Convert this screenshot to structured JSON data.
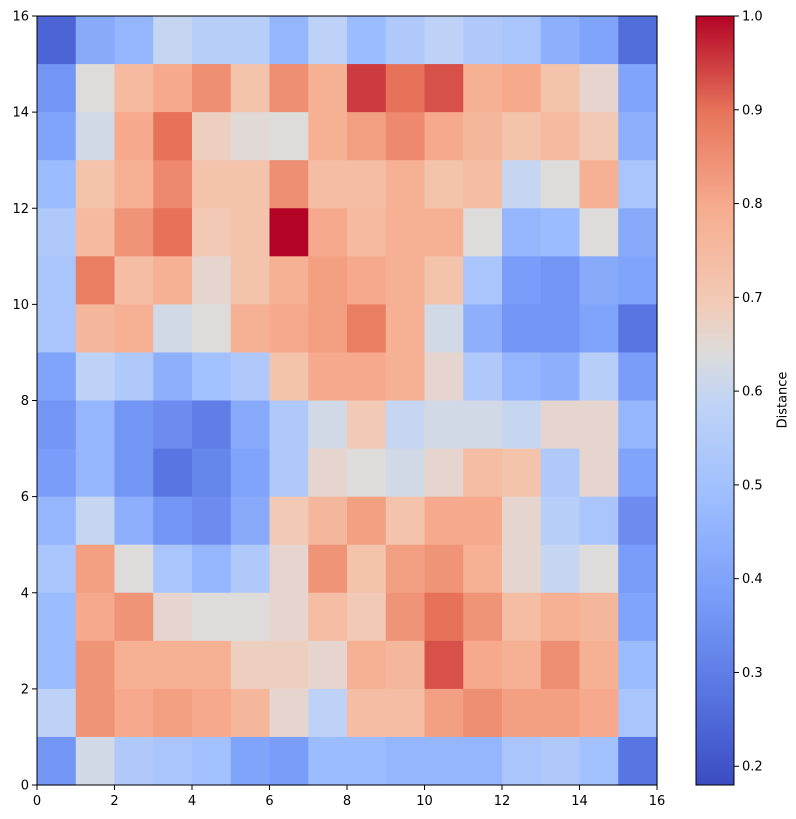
{
  "chart_data": {
    "type": "heatmap",
    "title": "",
    "xlabel": "",
    "ylabel": "",
    "xlim": [
      0,
      16
    ],
    "ylim": [
      0,
      16
    ],
    "x_ticks": [
      0,
      2,
      4,
      6,
      8,
      10,
      12,
      14,
      16
    ],
    "y_ticks": [
      0,
      2,
      4,
      6,
      8,
      10,
      12,
      14,
      16
    ],
    "colormap": "coolwarm",
    "colorbar": {
      "label": "Distance",
      "vmin": 0.18,
      "vmax": 1.0,
      "ticks": [
        0.2,
        0.3,
        0.4,
        0.5,
        0.6,
        0.7,
        0.8,
        0.9,
        1.0
      ],
      "tick_labels": [
        "0.2",
        "0.3",
        "0.4",
        "0.5",
        "0.6",
        "0.7",
        "0.8",
        "0.9",
        "1.0"
      ]
    },
    "grid": false,
    "rows_top_to_bottom": [
      [
        0.24,
        0.42,
        0.46,
        0.6,
        0.56,
        0.56,
        0.46,
        0.58,
        0.48,
        0.54,
        0.58,
        0.54,
        0.52,
        0.44,
        0.4,
        0.26
      ],
      [
        0.36,
        0.64,
        0.75,
        0.8,
        0.85,
        0.72,
        0.85,
        0.78,
        0.95,
        0.9,
        0.93,
        0.78,
        0.8,
        0.72,
        0.66,
        0.4
      ],
      [
        0.4,
        0.62,
        0.8,
        0.9,
        0.68,
        0.65,
        0.64,
        0.78,
        0.82,
        0.86,
        0.8,
        0.76,
        0.72,
        0.75,
        0.7,
        0.44
      ],
      [
        0.48,
        0.72,
        0.78,
        0.86,
        0.72,
        0.72,
        0.85,
        0.74,
        0.74,
        0.78,
        0.72,
        0.74,
        0.6,
        0.64,
        0.78,
        0.52
      ],
      [
        0.54,
        0.75,
        0.84,
        0.9,
        0.7,
        0.72,
        1.0,
        0.8,
        0.75,
        0.78,
        0.78,
        0.64,
        0.46,
        0.48,
        0.64,
        0.42
      ],
      [
        0.52,
        0.88,
        0.74,
        0.78,
        0.66,
        0.72,
        0.78,
        0.82,
        0.8,
        0.78,
        0.72,
        0.52,
        0.38,
        0.36,
        0.42,
        0.4
      ],
      [
        0.52,
        0.76,
        0.78,
        0.62,
        0.64,
        0.78,
        0.8,
        0.82,
        0.88,
        0.78,
        0.62,
        0.44,
        0.36,
        0.36,
        0.4,
        0.28
      ],
      [
        0.4,
        0.58,
        0.54,
        0.44,
        0.5,
        0.54,
        0.72,
        0.8,
        0.8,
        0.78,
        0.66,
        0.54,
        0.46,
        0.44,
        0.56,
        0.38
      ],
      [
        0.36,
        0.46,
        0.36,
        0.34,
        0.3,
        0.42,
        0.54,
        0.62,
        0.7,
        0.6,
        0.62,
        0.62,
        0.6,
        0.66,
        0.66,
        0.46
      ],
      [
        0.38,
        0.46,
        0.36,
        0.28,
        0.32,
        0.4,
        0.54,
        0.66,
        0.64,
        0.62,
        0.66,
        0.74,
        0.72,
        0.54,
        0.66,
        0.4
      ],
      [
        0.46,
        0.6,
        0.44,
        0.36,
        0.34,
        0.42,
        0.7,
        0.76,
        0.82,
        0.72,
        0.8,
        0.8,
        0.66,
        0.56,
        0.52,
        0.34
      ],
      [
        0.52,
        0.82,
        0.64,
        0.52,
        0.46,
        0.54,
        0.66,
        0.84,
        0.72,
        0.82,
        0.84,
        0.78,
        0.66,
        0.6,
        0.64,
        0.38
      ],
      [
        0.48,
        0.8,
        0.84,
        0.66,
        0.64,
        0.64,
        0.66,
        0.74,
        0.7,
        0.84,
        0.9,
        0.84,
        0.74,
        0.78,
        0.76,
        0.4
      ],
      [
        0.48,
        0.84,
        0.78,
        0.78,
        0.78,
        0.68,
        0.68,
        0.66,
        0.78,
        0.76,
        0.93,
        0.8,
        0.78,
        0.85,
        0.78,
        0.48
      ],
      [
        0.58,
        0.84,
        0.8,
        0.82,
        0.8,
        0.76,
        0.66,
        0.58,
        0.74,
        0.74,
        0.82,
        0.85,
        0.82,
        0.82,
        0.8,
        0.52
      ],
      [
        0.36,
        0.62,
        0.54,
        0.52,
        0.5,
        0.4,
        0.38,
        0.48,
        0.48,
        0.46,
        0.46,
        0.46,
        0.52,
        0.54,
        0.5,
        0.28
      ]
    ]
  }
}
